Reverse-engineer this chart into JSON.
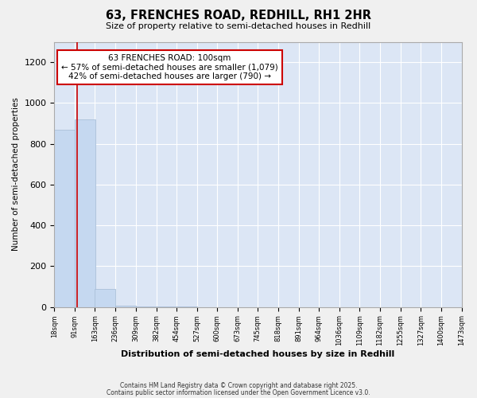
{
  "title": "63, FRENCHES ROAD, REDHILL, RH1 2HR",
  "subtitle": "Size of property relative to semi-detached houses in Redhill",
  "xlabel": "Distribution of semi-detached houses by size in Redhill",
  "ylabel": "Number of semi-detached properties",
  "property_size": 100,
  "annotation_title": "63 FRENCHES ROAD: 100sqm",
  "annotation_line1": "← 57% of semi-detached houses are smaller (1,079)",
  "annotation_line2": "42% of semi-detached houses are larger (790) →",
  "footer1": "Contains HM Land Registry data © Crown copyright and database right 2025.",
  "footer2": "Contains public sector information licensed under the Open Government Licence v3.0.",
  "bar_color": "#c5d8f0",
  "bar_edge_color": "#aabfd8",
  "redline_color": "#cc0000",
  "annotation_box_color": "#cc0000",
  "background_color": "#dce6f5",
  "fig_background": "#f0f0f0",
  "ylim": [
    0,
    1300
  ],
  "yticks": [
    0,
    200,
    400,
    600,
    800,
    1000,
    1200
  ],
  "bin_edges": [
    18,
    91,
    163,
    236,
    309,
    382,
    454,
    527,
    600,
    673,
    745,
    818,
    891,
    964,
    1036,
    1109,
    1182,
    1255,
    1327,
    1400,
    1473
  ],
  "bin_labels": [
    "18sqm",
    "91sqm",
    "163sqm",
    "236sqm",
    "309sqm",
    "382sqm",
    "454sqm",
    "527sqm",
    "600sqm",
    "673sqm",
    "745sqm",
    "818sqm",
    "891sqm",
    "964sqm",
    "1036sqm",
    "1109sqm",
    "1182sqm",
    "1255sqm",
    "1327sqm",
    "1400sqm",
    "1473sqm"
  ],
  "bar_heights": [
    870,
    920,
    90,
    5,
    2,
    1,
    1,
    0,
    0,
    0,
    0,
    0,
    0,
    0,
    0,
    0,
    0,
    0,
    0,
    0
  ]
}
